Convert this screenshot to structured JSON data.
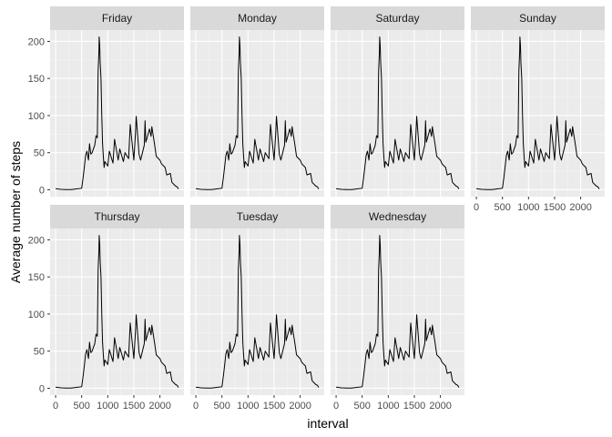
{
  "chart_data": {
    "type": "line",
    "facet_layout": "4 columns, 2 rows, shared axes",
    "xlabel": "interval",
    "ylabel": "Average number of steps",
    "xlim": [
      0,
      2355
    ],
    "ylim": [
      0,
      206
    ],
    "x_ticks": [
      0,
      500,
      1000,
      1500,
      2000
    ],
    "y_ticks": [
      0,
      50,
      100,
      150,
      200
    ],
    "x_tick_labels": [
      "0",
      "500",
      "1000",
      "1500",
      "2000"
    ],
    "y_tick_labels": [
      "0",
      "50",
      "100",
      "150",
      "200"
    ],
    "panel_background": "#ebebeb",
    "strip_background": "#d9d9d9",
    "grid": true,
    "line_color": "#000000",
    "panels": [
      {
        "label": "Friday"
      },
      {
        "label": "Monday"
      },
      {
        "label": "Saturday"
      },
      {
        "label": "Sunday"
      },
      {
        "label": "Thursday"
      },
      {
        "label": "Tuesday"
      },
      {
        "label": "Wednesday"
      }
    ],
    "x": [
      0,
      100,
      200,
      300,
      400,
      500,
      530,
      550,
      575,
      600,
      630,
      650,
      675,
      700,
      730,
      750,
      775,
      800,
      815,
      830,
      835,
      845,
      855,
      870,
      885,
      900,
      915,
      930,
      945,
      1000,
      1030,
      1100,
      1130,
      1200,
      1230,
      1300,
      1330,
      1400,
      1430,
      1500,
      1530,
      1545,
      1600,
      1630,
      1700,
      1715,
      1730,
      1800,
      1830,
      1845,
      1900,
      1930,
      2000,
      2030,
      2100,
      2130,
      2200,
      2230,
      2300,
      2330,
      2355
    ],
    "y": [
      1.5,
      0.5,
      0.2,
      0.3,
      1.2,
      2.0,
      18,
      30,
      46,
      52,
      40,
      62,
      48,
      50,
      56,
      60,
      73,
      70,
      160,
      185,
      206,
      195,
      170,
      150,
      100,
      62,
      45,
      30,
      38,
      32,
      52,
      36,
      68,
      40,
      55,
      38,
      50,
      42,
      88,
      40,
      75,
      99,
      48,
      40,
      60,
      93,
      64,
      82,
      72,
      85,
      60,
      45,
      40,
      35,
      30,
      20,
      22,
      10,
      5,
      4,
      1
    ]
  }
}
